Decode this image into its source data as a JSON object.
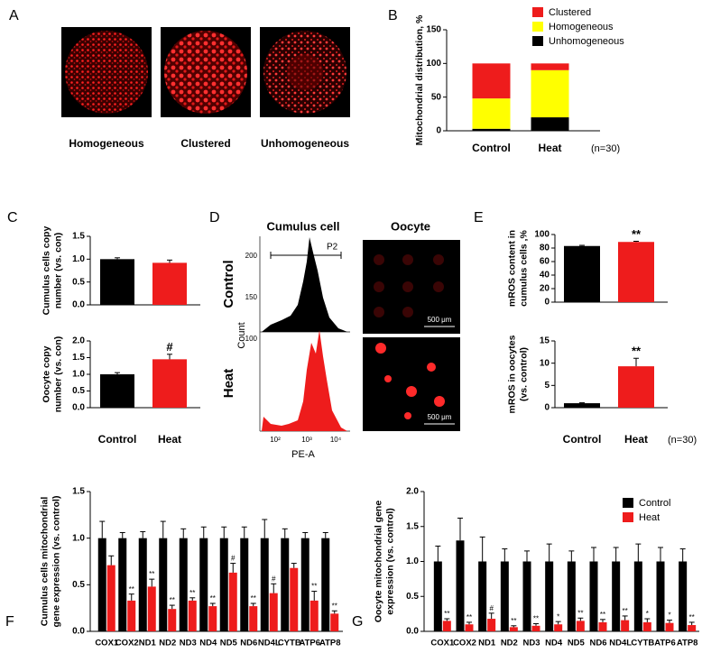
{
  "panel_a": {
    "panel": "A",
    "captions": [
      "Homogeneous",
      "Clustered",
      "Unhomogeneous"
    ]
  },
  "panel_d": {
    "panel": "D",
    "columns": [
      "Cumulus cell",
      "Oocyte"
    ],
    "rows": [
      "Control",
      "Heat"
    ],
    "ylabel": "Count",
    "xlabel": "PE-A",
    "gate": "P2",
    "yticks": [
      200,
      150,
      100
    ],
    "xticks": [
      "10²",
      "10³",
      "10⁴"
    ],
    "scale_bar": "500 μm"
  },
  "chart_data": [
    {
      "type": "bar",
      "panel": "B",
      "stacked": true,
      "ylabel": [
        "Mitochondrial distribution, %"
      ],
      "categories": [
        "Control",
        "Heat"
      ],
      "series": [
        {
          "name": "Clustered",
          "color": "#ee1c1c",
          "values": [
            52,
            10
          ]
        },
        {
          "name": "Homogeneous",
          "color": "#ffff00",
          "values": [
            45,
            70
          ]
        },
        {
          "name": "Unhomogeneous",
          "color": "#000000",
          "values": [
            3,
            20
          ]
        }
      ],
      "ylim": [
        0,
        150
      ],
      "yticks": [
        0,
        50,
        100,
        150
      ],
      "legend": "top-right",
      "annotation": "(n=30)"
    },
    {
      "type": "bar",
      "panel": "C",
      "ylabel": [
        "Cumulus cells copy",
        "number (vs. con)"
      ],
      "categories": [
        null,
        null
      ],
      "values": [
        1.0,
        0.92
      ],
      "errors": [
        0.03,
        0.06
      ],
      "colors": [
        "#000000",
        "#ee1c1c"
      ],
      "annotations": [
        null,
        null
      ],
      "ylim": [
        0,
        1.5
      ],
      "yticks": [
        {
          "value": 0,
          "label": "0.0"
        },
        {
          "value": 0.5,
          "label": "0.5"
        },
        {
          "value": 1,
          "label": "1.0"
        },
        {
          "value": 1.5,
          "label": "1.5"
        }
      ]
    },
    {
      "type": "bar",
      "ylabel": [
        "Oocyte copy",
        "number (vs. con)"
      ],
      "categories": [
        "Control",
        "Heat"
      ],
      "values": [
        1.0,
        1.45
      ],
      "errors": [
        0.05,
        0.15
      ],
      "colors": [
        "#000000",
        "#ee1c1c"
      ],
      "annotations": [
        null,
        "#"
      ],
      "ylim": [
        0,
        2
      ],
      "yticks": [
        {
          "value": 0,
          "label": "0.0"
        },
        {
          "value": 0.5,
          "label": "0.5"
        },
        {
          "value": 1,
          "label": "1.0"
        },
        {
          "value": 1.5,
          "label": "1.5"
        },
        {
          "value": 2,
          "label": "2.0"
        }
      ]
    },
    {
      "type": "bar",
      "panel": "E",
      "ylabel": [
        "mROS content in",
        "cumulus cells ,%"
      ],
      "categories": [
        null,
        null
      ],
      "values": [
        83,
        89
      ],
      "errors": [
        1,
        1
      ],
      "colors": [
        "#000000",
        "#ee1c1c"
      ],
      "annotations": [
        null,
        "**"
      ],
      "ylim": [
        0,
        100
      ],
      "yticks": [
        0,
        20,
        40,
        60,
        80,
        100
      ]
    },
    {
      "type": "bar",
      "ylabel": [
        "mROS in oocytes",
        "(vs. control)"
      ],
      "categories": [
        "Control",
        "Heat"
      ],
      "values": [
        1.0,
        9.3
      ],
      "errors": [
        0.1,
        1.8
      ],
      "colors": [
        "#000000",
        "#ee1c1c"
      ],
      "annotations": [
        null,
        "**"
      ],
      "ylim": [
        0,
        15
      ],
      "yticks": [
        0,
        5,
        10,
        15
      ],
      "annotation": "(n=30)"
    },
    {
      "type": "bar",
      "panel": "F",
      "ylabel": [
        "Cumulus cells mitochondrial",
        "gene expression (vs. control)"
      ],
      "categories": [
        "COX1",
        "COX2",
        "ND1",
        "ND2",
        "ND3",
        "ND4",
        "ND5",
        "ND6",
        "ND4L",
        "CYTB",
        "ATP6",
        "ATP8"
      ],
      "series": [
        {
          "name": "Control",
          "color": "#000000",
          "values": [
            1,
            1,
            1,
            1,
            1,
            1,
            1,
            1,
            1,
            1,
            1,
            1
          ],
          "errors": [
            0.18,
            0.06,
            0.07,
            0.18,
            0.1,
            0.12,
            0.12,
            0.12,
            0.2,
            0.1,
            0.06,
            0.06
          ],
          "annotations": [
            null,
            null,
            null,
            null,
            null,
            null,
            null,
            null,
            null,
            null,
            null,
            null
          ]
        },
        {
          "name": "Heat",
          "color": "#ee1c1c",
          "values": [
            0.71,
            0.33,
            0.48,
            0.24,
            0.33,
            0.27,
            0.63,
            0.27,
            0.41,
            0.68,
            0.33,
            0.19
          ],
          "errors": [
            0.1,
            0.07,
            0.08,
            0.04,
            0.03,
            0.03,
            0.1,
            0.03,
            0.1,
            0.05,
            0.1,
            0.03
          ],
          "annotations": [
            null,
            "**",
            "**",
            "**",
            "**",
            "**",
            "#",
            "**",
            "#",
            null,
            "**",
            "**"
          ]
        }
      ],
      "ylim": [
        0,
        1.5
      ],
      "yticks": [
        {
          "value": 0,
          "label": "0.0"
        },
        {
          "value": 0.5,
          "label": "0.5"
        },
        {
          "value": 1,
          "label": "1.0"
        },
        {
          "value": 1.5,
          "label": "1.5"
        }
      ]
    },
    {
      "type": "bar",
      "panel": "G",
      "ylabel": [
        "Oocyte mitochondrial gene",
        "expression (vs. control)"
      ],
      "categories": [
        "COX1",
        "COX2",
        "ND1",
        "ND2",
        "ND3",
        "ND4",
        "ND5",
        "ND6",
        "ND4L",
        "CYTB",
        "ATP6",
        "ATP8"
      ],
      "series": [
        {
          "name": "Control",
          "color": "#000000",
          "values": [
            1,
            1.3,
            1,
            1,
            1,
            1,
            1,
            1,
            1,
            1,
            1,
            1
          ],
          "errors": [
            0.22,
            0.32,
            0.35,
            0.18,
            0.15,
            0.25,
            0.15,
            0.2,
            0.2,
            0.25,
            0.2,
            0.18
          ],
          "annotations": [
            null,
            null,
            null,
            null,
            null,
            null,
            null,
            null,
            null,
            null,
            null,
            null
          ]
        },
        {
          "name": "Heat",
          "color": "#ee1c1c",
          "values": [
            0.15,
            0.1,
            0.18,
            0.06,
            0.08,
            0.1,
            0.15,
            0.13,
            0.16,
            0.13,
            0.12,
            0.09
          ],
          "errors": [
            0.03,
            0.03,
            0.08,
            0.02,
            0.03,
            0.04,
            0.04,
            0.04,
            0.06,
            0.05,
            0.04,
            0.04
          ],
          "annotations": [
            "**",
            "**",
            "#",
            "**",
            "**",
            "*",
            "**",
            "**",
            "**",
            "*",
            "*",
            "**"
          ]
        }
      ],
      "ylim": [
        0,
        2
      ],
      "yticks": [
        {
          "value": 0,
          "label": "0.0"
        },
        {
          "value": 0.5,
          "label": "0.5"
        },
        {
          "value": 1,
          "label": "1.0"
        },
        {
          "value": 1.5,
          "label": "1.5"
        },
        {
          "value": 2,
          "label": "2.0"
        }
      ],
      "legend": "top-right"
    }
  ]
}
